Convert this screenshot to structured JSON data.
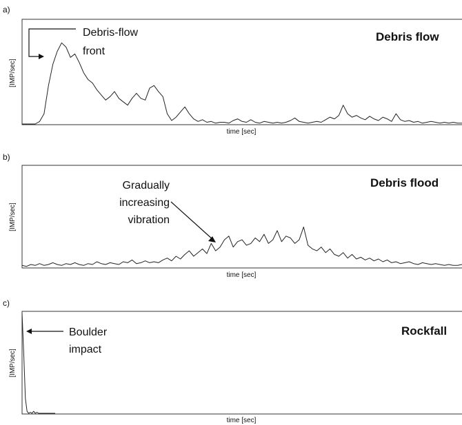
{
  "chart_data": [
    {
      "type": "line",
      "panel_label": "a)",
      "title": "Debris flow",
      "xlabel": "time [sec]",
      "ylabel": "[IMP/sec]",
      "annotation": [
        "Debris-flow",
        "front"
      ],
      "x": [
        0,
        1,
        2,
        3,
        4,
        5,
        6,
        7,
        8,
        9,
        10,
        11,
        12,
        13,
        14,
        15,
        16,
        17,
        18,
        19,
        20,
        21,
        22,
        23,
        24,
        25,
        26,
        27,
        28,
        29,
        30,
        31,
        32,
        33,
        34,
        35,
        36,
        37,
        38,
        39,
        40,
        41,
        42,
        43,
        44,
        45,
        46,
        47,
        48,
        49,
        50,
        51,
        52,
        53,
        54,
        55,
        56,
        57,
        58,
        59,
        60,
        61,
        62,
        63,
        64,
        65,
        66,
        67,
        68,
        69,
        70,
        71,
        72,
        73,
        74,
        75,
        76,
        77,
        78,
        79,
        80,
        81,
        82,
        83,
        84,
        85,
        86,
        87,
        88,
        89,
        90,
        91,
        92,
        93,
        94,
        95,
        96,
        97,
        98,
        99,
        100
      ],
      "values": [
        0,
        0,
        0,
        0,
        0.03,
        0.12,
        0.45,
        0.7,
        0.85,
        0.95,
        0.9,
        0.78,
        0.82,
        0.72,
        0.6,
        0.52,
        0.48,
        0.4,
        0.34,
        0.28,
        0.32,
        0.38,
        0.3,
        0.26,
        0.22,
        0.3,
        0.36,
        0.3,
        0.28,
        0.42,
        0.45,
        0.38,
        0.32,
        0.12,
        0.04,
        0.08,
        0.14,
        0.2,
        0.12,
        0.06,
        0.03,
        0.05,
        0.02,
        0.03,
        0.01,
        0.02,
        0.02,
        0.01,
        0.04,
        0.06,
        0.03,
        0.02,
        0.05,
        0.02,
        0.01,
        0.03,
        0.02,
        0.01,
        0.02,
        0.01,
        0.02,
        0.04,
        0.07,
        0.03,
        0.02,
        0.01,
        0.02,
        0.03,
        0.02,
        0.05,
        0.08,
        0.06,
        0.1,
        0.22,
        0.12,
        0.08,
        0.1,
        0.07,
        0.05,
        0.09,
        0.06,
        0.04,
        0.08,
        0.06,
        0.03,
        0.12,
        0.05,
        0.03,
        0.04,
        0.02,
        0.03,
        0.01,
        0.02,
        0.03,
        0.02,
        0.01,
        0.02,
        0.01,
        0.02,
        0.01,
        0.01
      ],
      "ylim": [
        0,
        1
      ]
    },
    {
      "type": "line",
      "panel_label": "b)",
      "title": "Debris flood",
      "xlabel": "time [sec]",
      "ylabel": "[IMP/sec]",
      "annotation": [
        "Gradually",
        "increasing",
        "vibration"
      ],
      "x": [
        0,
        1,
        2,
        3,
        4,
        5,
        6,
        7,
        8,
        9,
        10,
        11,
        12,
        13,
        14,
        15,
        16,
        17,
        18,
        19,
        20,
        21,
        22,
        23,
        24,
        25,
        26,
        27,
        28,
        29,
        30,
        31,
        32,
        33,
        34,
        35,
        36,
        37,
        38,
        39,
        40,
        41,
        42,
        43,
        44,
        45,
        46,
        47,
        48,
        49,
        50,
        51,
        52,
        53,
        54,
        55,
        56,
        57,
        58,
        59,
        60,
        61,
        62,
        63,
        64,
        65,
        66,
        67,
        68,
        69,
        70,
        71,
        72,
        73,
        74,
        75,
        76,
        77,
        78,
        79,
        80,
        81,
        82,
        83,
        84,
        85,
        86,
        87,
        88,
        89,
        90,
        91,
        92,
        93,
        94,
        95,
        96,
        97,
        98,
        99,
        100
      ],
      "values": [
        0.02,
        0.01,
        0.03,
        0.02,
        0.04,
        0.02,
        0.03,
        0.05,
        0.03,
        0.02,
        0.04,
        0.03,
        0.05,
        0.03,
        0.02,
        0.04,
        0.03,
        0.06,
        0.04,
        0.03,
        0.05,
        0.04,
        0.03,
        0.06,
        0.05,
        0.08,
        0.04,
        0.05,
        0.07,
        0.05,
        0.06,
        0.05,
        0.08,
        0.1,
        0.07,
        0.12,
        0.09,
        0.14,
        0.18,
        0.12,
        0.16,
        0.2,
        0.15,
        0.26,
        0.18,
        0.22,
        0.3,
        0.34,
        0.22,
        0.28,
        0.3,
        0.24,
        0.26,
        0.32,
        0.28,
        0.36,
        0.26,
        0.3,
        0.4,
        0.28,
        0.34,
        0.32,
        0.26,
        0.3,
        0.44,
        0.24,
        0.2,
        0.18,
        0.22,
        0.16,
        0.2,
        0.14,
        0.12,
        0.16,
        0.1,
        0.14,
        0.09,
        0.11,
        0.08,
        0.1,
        0.07,
        0.09,
        0.06,
        0.08,
        0.05,
        0.06,
        0.04,
        0.05,
        0.06,
        0.04,
        0.03,
        0.05,
        0.04,
        0.03,
        0.04,
        0.03,
        0.02,
        0.03,
        0.02,
        0.02,
        0.03
      ],
      "ylim": [
        0,
        1
      ]
    },
    {
      "type": "line",
      "panel_label": "c)",
      "title": "Rockfall",
      "xlabel": "time [sec]",
      "ylabel": "[IMP/sec]",
      "annotation": [
        "Boulder",
        "impact"
      ],
      "x": [
        0,
        1,
        2,
        3,
        4,
        5,
        6,
        7,
        8,
        9,
        10,
        11,
        12,
        13,
        14,
        15,
        16,
        17,
        18,
        19,
        20
      ],
      "values": [
        1.0,
        0.6,
        0.15,
        0.02,
        0.0,
        0.01,
        0.0,
        0.02,
        0.0,
        0.01,
        0.0,
        0.0,
        0.0,
        0.0,
        0.0,
        0.0,
        0.0,
        0.0,
        0.0,
        0.0,
        0.0
      ],
      "ylim": [
        0,
        1
      ]
    }
  ]
}
